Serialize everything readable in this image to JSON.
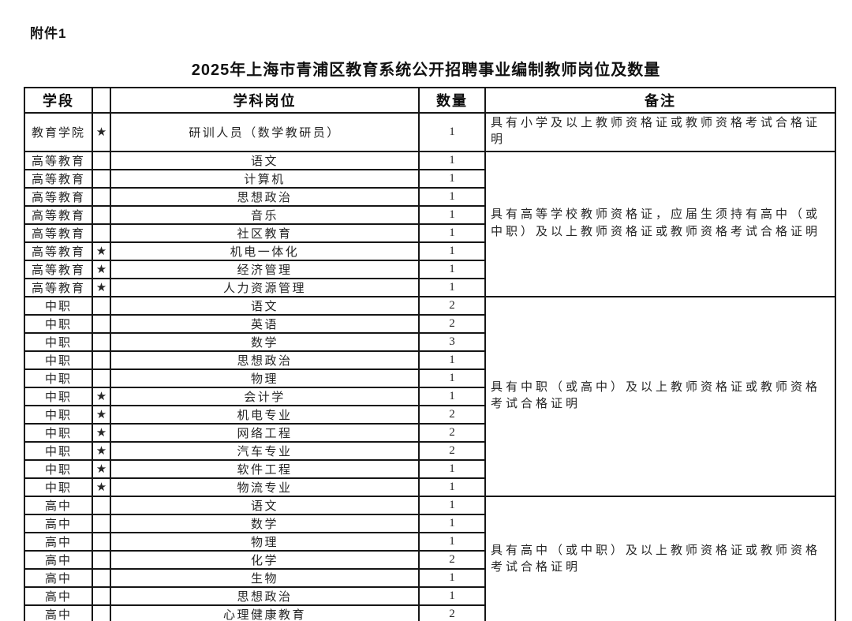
{
  "page": {
    "attachment_label": "附件1",
    "title": "2025年上海市青浦区教育系统公开招聘事业编制教师岗位及数量"
  },
  "table": {
    "headers": {
      "stage": "学段",
      "star": "",
      "position": "学科岗位",
      "count": "数量",
      "remark": "备注"
    },
    "star_symbol": "★",
    "sections": [
      {
        "remark": "具有小学及以上教师资格证或教师资格考试合格证明",
        "rows": [
          {
            "stage": "教育学院",
            "star": true,
            "position": "研训人员（数学教研员）",
            "count": "1"
          }
        ]
      },
      {
        "remark": "具有高等学校教师资格证，应届生须持有高中（或中职）及以上教师资格证或教师资格考试合格证明",
        "rows": [
          {
            "stage": "高等教育",
            "star": false,
            "position": "语文",
            "count": "1"
          },
          {
            "stage": "高等教育",
            "star": false,
            "position": "计算机",
            "count": "1"
          },
          {
            "stage": "高等教育",
            "star": false,
            "position": "思想政治",
            "count": "1"
          },
          {
            "stage": "高等教育",
            "star": false,
            "position": "音乐",
            "count": "1"
          },
          {
            "stage": "高等教育",
            "star": false,
            "position": "社区教育",
            "count": "1"
          },
          {
            "stage": "高等教育",
            "star": true,
            "position": "机电一体化",
            "count": "1"
          },
          {
            "stage": "高等教育",
            "star": true,
            "position": "经济管理",
            "count": "1"
          },
          {
            "stage": "高等教育",
            "star": true,
            "position": "人力资源管理",
            "count": "1"
          }
        ]
      },
      {
        "remark": "具有中职（或高中）及以上教师资格证或教师资格考试合格证明",
        "rows": [
          {
            "stage": "中职",
            "star": false,
            "position": "语文",
            "count": "2"
          },
          {
            "stage": "中职",
            "star": false,
            "position": "英语",
            "count": "2"
          },
          {
            "stage": "中职",
            "star": false,
            "position": "数学",
            "count": "3"
          },
          {
            "stage": "中职",
            "star": false,
            "position": "思想政治",
            "count": "1"
          },
          {
            "stage": "中职",
            "star": false,
            "position": "物理",
            "count": "1"
          },
          {
            "stage": "中职",
            "star": true,
            "position": "会计学",
            "count": "1"
          },
          {
            "stage": "中职",
            "star": true,
            "position": "机电专业",
            "count": "2"
          },
          {
            "stage": "中职",
            "star": true,
            "position": "网络工程",
            "count": "2"
          },
          {
            "stage": "中职",
            "star": true,
            "position": "汽车专业",
            "count": "2"
          },
          {
            "stage": "中职",
            "star": true,
            "position": "软件工程",
            "count": "1"
          },
          {
            "stage": "中职",
            "star": true,
            "position": "物流专业",
            "count": "1"
          }
        ]
      },
      {
        "remark": "具有高中（或中职）及以上教师资格证或教师资格考试合格证明",
        "rows": [
          {
            "stage": "高中",
            "star": false,
            "position": "语文",
            "count": "1"
          },
          {
            "stage": "高中",
            "star": false,
            "position": "数学",
            "count": "1"
          },
          {
            "stage": "高中",
            "star": false,
            "position": "物理",
            "count": "1"
          },
          {
            "stage": "高中",
            "star": false,
            "position": "化学",
            "count": "2"
          },
          {
            "stage": "高中",
            "star": false,
            "position": "生物",
            "count": "1"
          },
          {
            "stage": "高中",
            "star": false,
            "position": "思想政治",
            "count": "1"
          },
          {
            "stage": "高中",
            "star": false,
            "position": "心理健康教育",
            "count": "2"
          }
        ]
      }
    ]
  },
  "colors": {
    "border": "#161616",
    "text": "#262626",
    "background": "#ffffff"
  }
}
